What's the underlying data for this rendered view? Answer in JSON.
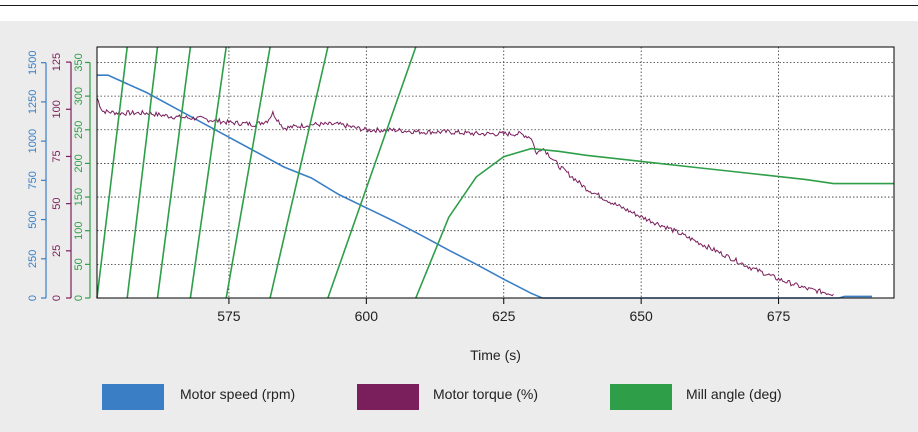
{
  "colors": {
    "speed": "#3a7fc6",
    "torque": "#7a1f5c",
    "angle": "#2e9e48",
    "panel": "#ececec",
    "plot": "#ffffff"
  },
  "chart_data": {
    "type": "line",
    "title": "",
    "xlabel": "Time (s)",
    "xlim": [
      551,
      696
    ],
    "xticks": [
      575,
      600,
      625,
      650,
      675
    ],
    "grid": true,
    "legend_position": "bottom",
    "axes": [
      {
        "id": "speed",
        "ylim": [
          0,
          1600
        ],
        "ticks": [
          0,
          250,
          500,
          750,
          1000,
          1250,
          1500
        ]
      },
      {
        "id": "torque",
        "ylim": [
          0,
          133
        ],
        "ticks": [
          0,
          25,
          50,
          75,
          100,
          125
        ]
      },
      {
        "id": "angle",
        "ylim": [
          0,
          373
        ],
        "ticks": [
          0,
          50,
          100,
          150,
          200,
          250,
          300,
          350
        ]
      }
    ],
    "series": [
      {
        "name": "Motor speed (rpm)",
        "axis": "speed",
        "x": [
          551,
          553,
          560,
          565,
          570,
          575,
          580,
          585,
          590,
          595,
          600,
          605,
          610,
          615,
          620,
          625,
          630,
          632,
          640,
          650,
          660,
          670,
          680,
          686,
          687,
          692
        ],
        "y": [
          1420,
          1420,
          1310,
          1215,
          1120,
          1025,
          930,
          835,
          765,
          660,
          575,
          490,
          400,
          305,
          215,
          120,
          30,
          0,
          0,
          0,
          0,
          0,
          0,
          0,
          10,
          10
        ]
      },
      {
        "name": "Motor torque (%)",
        "axis": "torque",
        "x": [
          551,
          552,
          555,
          560,
          565,
          570,
          575,
          580,
          582,
          583,
          585,
          590,
          595,
          600,
          605,
          610,
          615,
          620,
          625,
          628,
          630,
          631,
          632,
          635,
          640,
          645,
          650,
          655,
          660,
          665,
          670,
          675,
          680,
          685
        ],
        "y": [
          106,
          99,
          98,
          98,
          96,
          95,
          93,
          92,
          94,
          98,
          90,
          92,
          92,
          89,
          89,
          88,
          88,
          87,
          87,
          87,
          85,
          76,
          80,
          70,
          58,
          50,
          43,
          37,
          30,
          23,
          16,
          10,
          5,
          2
        ]
      },
      {
        "name": "Mill angle (deg)",
        "axis": "angle",
        "segments": [
          {
            "x": [
              551,
              556.5
            ],
            "y": [
              0,
              373
            ]
          },
          {
            "x": [
              556.5,
              562
            ],
            "y": [
              0,
              373
            ]
          },
          {
            "x": [
              562,
              568
            ],
            "y": [
              0,
              373
            ]
          },
          {
            "x": [
              568,
              574.5
            ],
            "y": [
              0,
              373
            ]
          },
          {
            "x": [
              574.5,
              582.5
            ],
            "y": [
              0,
              373
            ]
          },
          {
            "x": [
              582.5,
              593
            ],
            "y": [
              0,
              373
            ]
          },
          {
            "x": [
              593,
              609
            ],
            "y": [
              0,
              373
            ]
          },
          {
            "x": [
              609,
              615,
              620,
              625,
              630,
              635,
              640,
              650,
              660,
              670,
              680,
              685,
              696
            ],
            "y": [
              0,
              120,
              180,
              210,
              222,
              218,
              212,
              203,
              194,
              185,
              176,
              170,
              170
            ]
          }
        ]
      }
    ]
  }
}
